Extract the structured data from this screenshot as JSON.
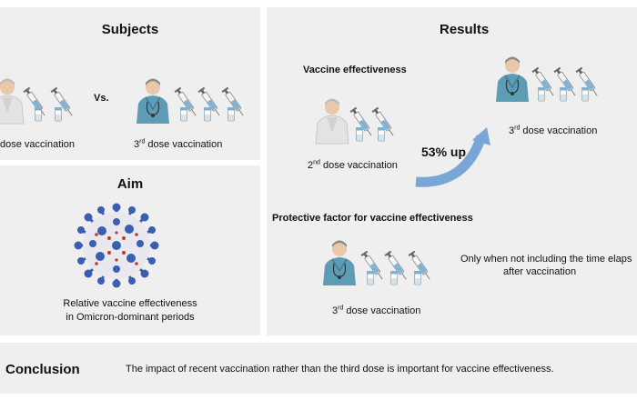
{
  "subjects": {
    "title": "Subjects",
    "left_label_prefix": "",
    "left_label_rest": "dose vaccination",
    "vs": "Vs.",
    "right_num": "3",
    "right_sup": "rd",
    "right_rest": " dose vaccination"
  },
  "aim": {
    "title": "Aim",
    "line1": "Relative vaccine effectiveness",
    "line2": "in Omicron-dominant periods"
  },
  "results": {
    "title": "Results",
    "vaccine_effectiveness": {
      "heading": "Vaccine effectiveness",
      "from_num": "2",
      "from_sup": "nd",
      "from_rest": " dose vaccination",
      "change": "53% up",
      "to_num": "3",
      "to_sup": "rd",
      "to_rest": " dose vaccination"
    },
    "protective_factor": {
      "heading": "Protective factor for vaccine effectiveness",
      "dose_num": "3",
      "dose_sup": "rd",
      "dose_rest": " dose vaccination",
      "note_line1": "Only when not including the time elaps",
      "note_line2": "after vaccination"
    }
  },
  "conclusion": {
    "label": "Conclusion",
    "text": "The impact of recent vaccination rather than the third dose is important for vaccine effectiveness."
  },
  "colors": {
    "panel_bg": "#efefef",
    "scrubs": "#5e9bb5",
    "coat": "#e3e3e3",
    "virus_blue": "#3a5fae",
    "virus_red": "#c0392b",
    "arrow_blue": "#7aa6d6"
  },
  "icons": [
    "doctor-icon",
    "syringe-icon",
    "vial-icon",
    "virus-icon",
    "curved-arrow-icon"
  ]
}
